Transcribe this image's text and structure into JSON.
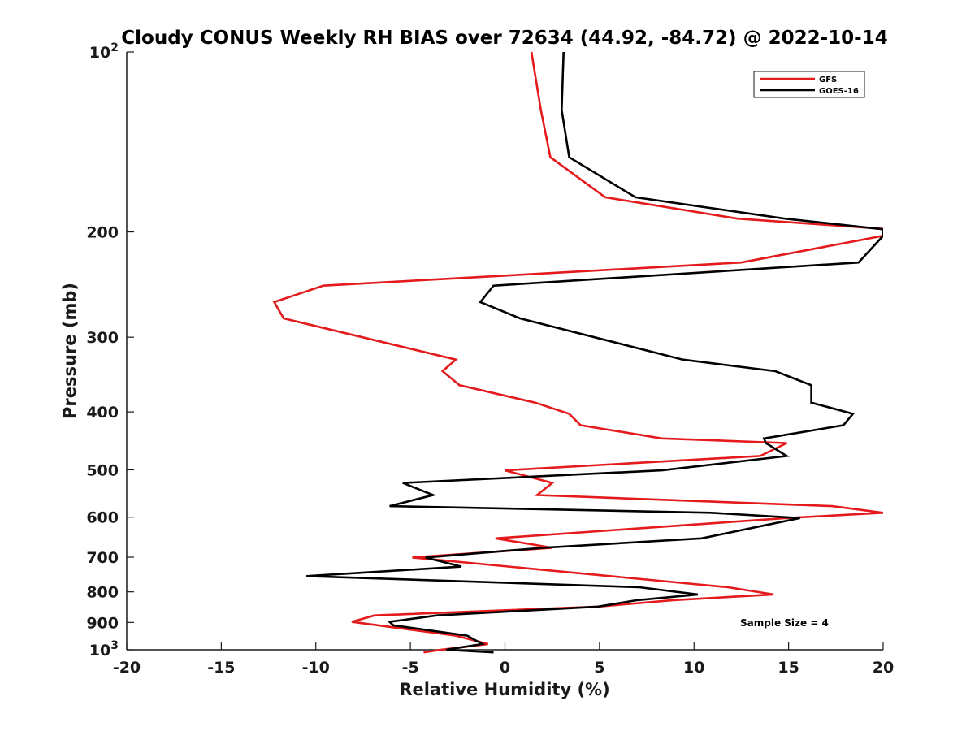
{
  "chart_data": {
    "type": "line",
    "title": "Cloudy CONUS Weekly RH BIAS over 72634 (44.92, -84.72) @ 2022-10-14",
    "xlabel": "Relative Humidity (%)",
    "ylabel": "Pressure (mb)",
    "xlim": [
      -20,
      20
    ],
    "ylim": [
      100,
      1000
    ],
    "y_scale": "log",
    "y_reversed": true,
    "grid": false,
    "legend_position": "top-right",
    "x_ticks": [
      "-20",
      "-15",
      "-10",
      "-5",
      "0",
      "5",
      "10",
      "15",
      "20"
    ],
    "y_ticks": [
      {
        "value": 100,
        "base": "10",
        "exp": "2"
      },
      {
        "value": 200,
        "label": "200"
      },
      {
        "value": 300,
        "label": "300"
      },
      {
        "value": 400,
        "label": "400"
      },
      {
        "value": 500,
        "label": "500"
      },
      {
        "value": 600,
        "label": "600"
      },
      {
        "value": 700,
        "label": "700"
      },
      {
        "value": 800,
        "label": "800"
      },
      {
        "value": 900,
        "label": "900"
      },
      {
        "value": 1000,
        "base": "10",
        "exp": "3"
      }
    ],
    "annotation": "Sample Size = 4",
    "series": [
      {
        "name": "GFS",
        "color": "#e41a1c",
        "points": [
          [
            1.4,
            100
          ],
          [
            1.9,
            125
          ],
          [
            2.4,
            150
          ],
          [
            5.3,
            175
          ],
          [
            12.3,
            190
          ],
          [
            20.4,
            198
          ],
          [
            20.0,
            203
          ],
          [
            12.5,
            225
          ],
          [
            -9.6,
            246
          ],
          [
            -12.2,
            262
          ],
          [
            -11.7,
            279
          ],
          [
            -2.6,
            327
          ],
          [
            -3.3,
            342
          ],
          [
            -2.4,
            361
          ],
          [
            1.6,
            386
          ],
          [
            3.4,
            403
          ],
          [
            4.0,
            421
          ],
          [
            8.3,
            443
          ],
          [
            14.9,
            451
          ],
          [
            13.5,
            474
          ],
          [
            0.0,
            501
          ],
          [
            2.5,
            526
          ],
          [
            1.7,
            551
          ],
          [
            17.3,
            575
          ],
          [
            20.0,
            590
          ],
          [
            14.9,
            602
          ],
          [
            -0.5,
            651
          ],
          [
            2.5,
            675
          ],
          [
            -4.9,
            701
          ],
          [
            11.8,
            786
          ],
          [
            14.2,
            808
          ],
          [
            8.9,
            826
          ],
          [
            4.9,
            847
          ],
          [
            -6.9,
            876
          ],
          [
            -8.1,
            898
          ],
          [
            -2.6,
            947
          ],
          [
            -0.9,
            978
          ],
          [
            -3.4,
            1000
          ],
          [
            -4.3,
            1010
          ]
        ]
      },
      {
        "name": "GOES-16",
        "color": "#000000",
        "points": [
          [
            3.1,
            100
          ],
          [
            3.0,
            125
          ],
          [
            3.4,
            150
          ],
          [
            6.9,
            175
          ],
          [
            14.8,
            190
          ],
          [
            20.0,
            198
          ],
          [
            20.0,
            203
          ],
          [
            18.7,
            225
          ],
          [
            -0.6,
            246
          ],
          [
            -1.3,
            262
          ],
          [
            0.8,
            279
          ],
          [
            9.4,
            327
          ],
          [
            14.3,
            342
          ],
          [
            16.2,
            361
          ],
          [
            16.2,
            386
          ],
          [
            18.4,
            403
          ],
          [
            17.9,
            421
          ],
          [
            13.7,
            443
          ],
          [
            13.8,
            451
          ],
          [
            14.9,
            474
          ],
          [
            8.3,
            501
          ],
          [
            -5.4,
            526
          ],
          [
            -3.8,
            551
          ],
          [
            -6.1,
            575
          ],
          [
            10.9,
            590
          ],
          [
            15.6,
            602
          ],
          [
            10.4,
            651
          ],
          [
            2.0,
            675
          ],
          [
            -4.2,
            701
          ],
          [
            -2.3,
            726
          ],
          [
            -10.5,
            753
          ],
          [
            7.1,
            786
          ],
          [
            10.2,
            808
          ],
          [
            7.0,
            826
          ],
          [
            4.9,
            847
          ],
          [
            -3.6,
            876
          ],
          [
            -6.1,
            898
          ],
          [
            -5.9,
            910
          ],
          [
            -2.0,
            947
          ],
          [
            -1.2,
            978
          ],
          [
            -3.1,
            1000
          ],
          [
            -0.6,
            1010
          ]
        ]
      }
    ]
  }
}
